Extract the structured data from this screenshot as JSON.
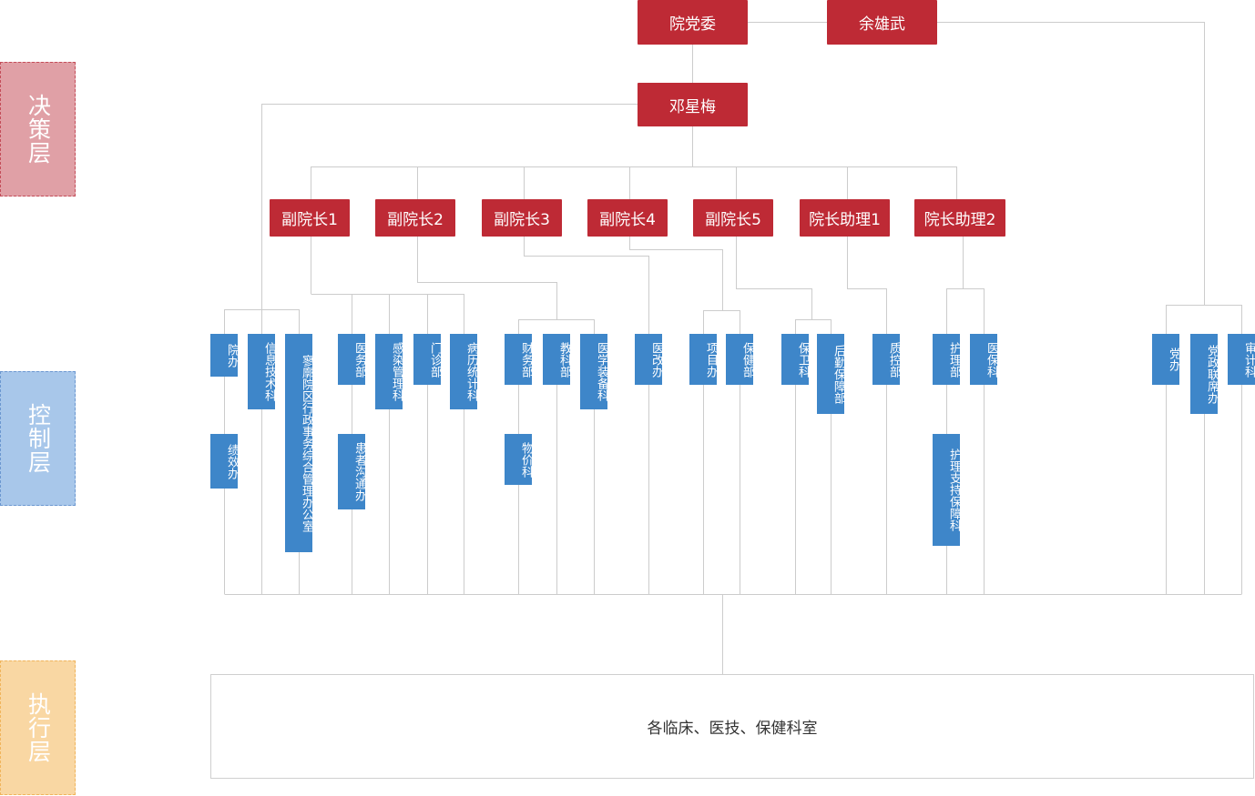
{
  "layers": {
    "decision": "决策层",
    "control": "控制层",
    "execution": "执行层"
  },
  "top": {
    "party_committee": "院党委",
    "secretary": "余雄武",
    "president": "邓星梅"
  },
  "leaders": [
    "副院长1",
    "副院长2",
    "副院长3",
    "副院长4",
    "副院长5",
    "院长助理1",
    "院长助理2"
  ],
  "departments": {
    "d1": "院办",
    "d2": "信息技术科",
    "d3": "寥廓院区行政事务综合管理办公室",
    "d4": "医务部",
    "d5": "感染管理科",
    "d6": "门诊部",
    "d7": "病历统计科",
    "d8": "财务部",
    "d9": "教科部",
    "d10": "医学装备科",
    "d11": "医改办",
    "d12": "项目办",
    "d13": "保健部",
    "d14": "保卫科",
    "d15": "后勤保障部",
    "d16": "质控部",
    "d17": "护理部",
    "d18": "医保科",
    "d19": "党办",
    "d20": "党政联席办",
    "d21": "审计科",
    "s1": "绩效办",
    "s2": "患者沟通办",
    "s3": "物价科",
    "s4": "护理支持保障科"
  },
  "execution": "各临床、医技、保健科室",
  "colors": {
    "decision_red": "#be2a35",
    "control_blue": "#3e86c9",
    "line_gray": "#cccccc"
  }
}
